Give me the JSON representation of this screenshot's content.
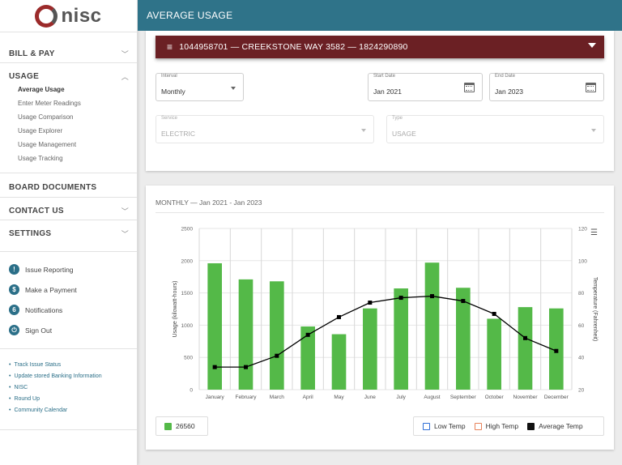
{
  "logo": {
    "text": "nisc"
  },
  "header": {
    "title": "AVERAGE USAGE"
  },
  "sidebar": {
    "sections": [
      {
        "label": "BILL & PAY"
      },
      {
        "label": "USAGE"
      },
      {
        "label": "BOARD DOCUMENTS"
      },
      {
        "label": "CONTACT US"
      },
      {
        "label": "SETTINGS"
      }
    ],
    "usage_items": [
      "Average Usage",
      "Enter Meter Readings",
      "Usage Comparison",
      "Usage Explorer",
      "Usage Management",
      "Usage Tracking"
    ],
    "quick_actions": [
      {
        "label": "Issue Reporting",
        "icon": "!"
      },
      {
        "label": "Make a Payment",
        "icon": "$"
      },
      {
        "label": "Notifications",
        "icon": "6"
      },
      {
        "label": "Sign Out",
        "icon": "⏻"
      }
    ],
    "links": [
      "Track Issue Status",
      "Update stored Banking Information",
      "NISC",
      "Round Up",
      "Community Calendar"
    ]
  },
  "account": {
    "label": "1044958701 — CREEKSTONE WAY 3582 — 1824290890"
  },
  "filters": {
    "interval": {
      "label": "Interval",
      "value": "Monthly"
    },
    "start_date": {
      "label": "Start Date",
      "value": "Jan 2021"
    },
    "end_date": {
      "label": "End Date",
      "value": "Jan 2023"
    },
    "service": {
      "label": "Service",
      "value": "ELECTRIC"
    },
    "type": {
      "label": "Type",
      "value": "USAGE"
    }
  },
  "chart_section": {
    "title": "MONTHLY — Jan 2021 - Jan 2023"
  },
  "chart_data": {
    "type": "bar",
    "categories": [
      "January",
      "February",
      "March",
      "April",
      "May",
      "June",
      "July",
      "August",
      "September",
      "October",
      "November",
      "December"
    ],
    "series": [
      {
        "name": "26560",
        "type": "bar",
        "axis": "left",
        "color": "#54b948",
        "values": [
          1960,
          1710,
          1680,
          980,
          860,
          1260,
          1570,
          1970,
          1580,
          1100,
          1280,
          1260
        ]
      },
      {
        "name": "Average Temp",
        "type": "line",
        "axis": "right",
        "color": "#000000",
        "values": [
          34,
          34,
          41,
          54,
          65,
          74,
          77,
          78,
          75,
          67,
          52,
          44
        ]
      }
    ],
    "ylabel": "Usage (kilowatt-hours)",
    "y2label": "Temperature (Fahrenheit)",
    "ylim": [
      0,
      2500
    ],
    "yticks": [
      0,
      500,
      1000,
      1500,
      2000,
      2500
    ],
    "y2lim": [
      20,
      120
    ],
    "y2ticks": [
      20,
      40,
      60,
      80,
      100,
      120
    ],
    "grid": true
  },
  "legend": {
    "meter": {
      "label": "26560",
      "color": "#54b948"
    },
    "items": [
      {
        "label": "Low Temp",
        "color": "#2f6fd6",
        "checked": false
      },
      {
        "label": "High Temp",
        "color": "#e8825a",
        "checked": false
      },
      {
        "label": "Average Temp",
        "color": "#111111",
        "checked": true
      }
    ]
  }
}
